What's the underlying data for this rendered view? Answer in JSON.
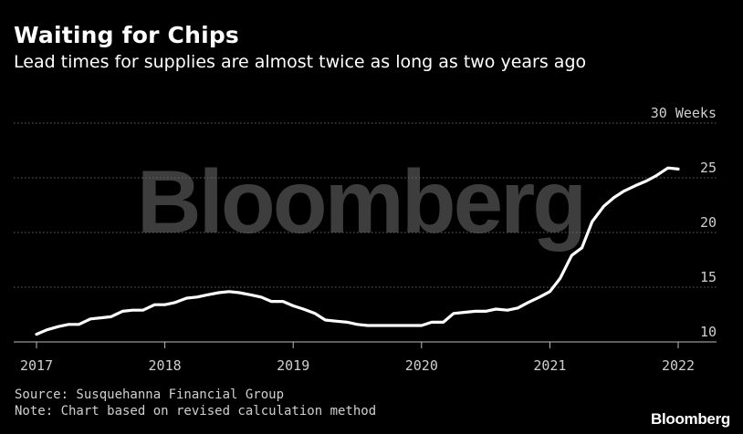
{
  "title": "Waiting for Chips",
  "subtitle": "Lead times for supplies are almost twice as long as two years ago",
  "source": "Source: Susquehanna Financial Group",
  "note": "Note: Chart based on revised calculation method",
  "brand": "Bloomberg",
  "watermark": "Bloomberg",
  "colors": {
    "background": "#000000",
    "line": "#ffffff",
    "grid": "#666666",
    "axis": "#bbbbbb",
    "tick_text": "#cfcfcf",
    "watermark": "#3d3d3d"
  },
  "chart_data": {
    "type": "line",
    "title": "Waiting for Chips",
    "subtitle": "Lead times for supplies are almost twice as long as two years ago",
    "xlabel": "",
    "ylabel": "Weeks",
    "xlim": [
      2017,
      2022.2
    ],
    "ylim": [
      10,
      30
    ],
    "x_ticks": [
      2017,
      2018,
      2019,
      2020,
      2021,
      2022
    ],
    "x_tick_labels": [
      "2017",
      "2018",
      "2019",
      "2020",
      "2021",
      "2022"
    ],
    "y_ticks": [
      10,
      15,
      20,
      25,
      30
    ],
    "y_tick_labels": [
      "10",
      "15",
      "20",
      "25",
      "30 Weeks"
    ],
    "grid": true,
    "series": [
      {
        "name": "Lead time",
        "x": [
          2017.0,
          2017.08,
          2017.17,
          2017.25,
          2017.33,
          2017.42,
          2017.5,
          2017.58,
          2017.67,
          2017.75,
          2017.83,
          2017.92,
          2018.0,
          2018.08,
          2018.17,
          2018.25,
          2018.33,
          2018.42,
          2018.5,
          2018.58,
          2018.67,
          2018.75,
          2018.83,
          2018.92,
          2019.0,
          2019.08,
          2019.17,
          2019.25,
          2019.33,
          2019.42,
          2019.5,
          2019.58,
          2019.67,
          2019.75,
          2019.83,
          2019.92,
          2020.0,
          2020.08,
          2020.17,
          2020.25,
          2020.33,
          2020.42,
          2020.5,
          2020.58,
          2020.67,
          2020.75,
          2020.83,
          2020.92,
          2021.0,
          2021.08,
          2021.17,
          2021.25,
          2021.33,
          2021.42,
          2021.5,
          2021.58,
          2021.67,
          2021.75,
          2021.83,
          2021.92,
          2022.0
        ],
        "values": [
          10.7,
          11.1,
          11.4,
          11.6,
          11.6,
          12.1,
          12.2,
          12.3,
          12.8,
          12.9,
          12.9,
          13.4,
          13.4,
          13.6,
          14.0,
          14.1,
          14.3,
          14.5,
          14.6,
          14.5,
          14.3,
          14.1,
          13.7,
          13.7,
          13.3,
          13.0,
          12.6,
          12.0,
          11.9,
          11.8,
          11.6,
          11.5,
          11.5,
          11.5,
          11.5,
          11.5,
          11.5,
          11.8,
          11.8,
          12.6,
          12.7,
          12.8,
          12.8,
          13.0,
          12.9,
          13.1,
          13.6,
          14.1,
          14.6,
          15.8,
          17.9,
          18.6,
          21.0,
          22.4,
          23.2,
          23.8,
          24.3,
          24.7,
          25.2,
          25.9,
          25.8
        ]
      }
    ]
  }
}
